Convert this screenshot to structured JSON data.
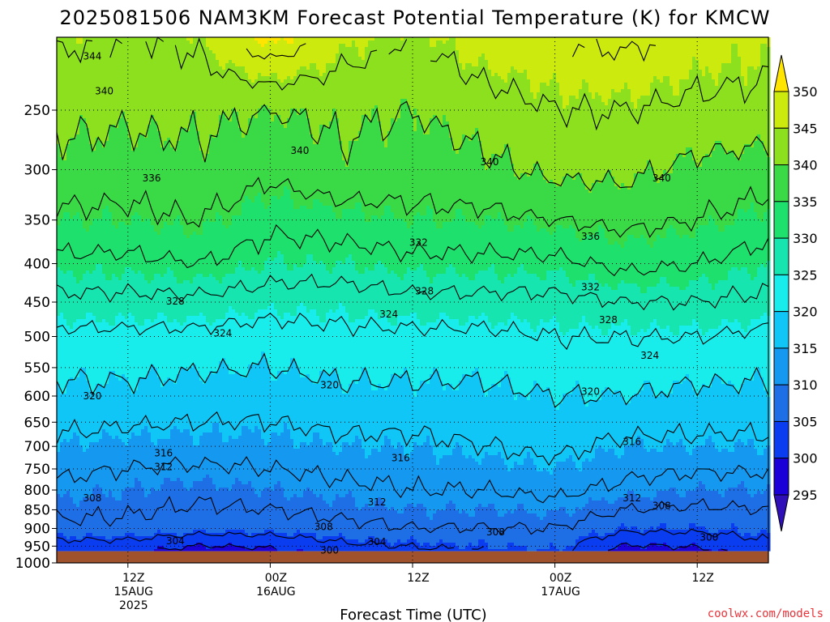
{
  "title": "2025081506 NAM3KM Forecast Potential Temperature (K) for KMCW",
  "xlabel": "Forecast Time (UTC)",
  "credit": "coolwx.com/models",
  "colors": {
    "ground": "#a0522d",
    "contour": "#000000",
    "fill_levels": [
      295,
      300,
      305,
      310,
      315,
      320,
      325,
      330,
      335,
      340,
      345,
      350
    ],
    "fill_colors": [
      "#1b00d8",
      "#0a3cf0",
      "#1e6fe6",
      "#1498f0",
      "#10c6f7",
      "#18edeb",
      "#17e5b0",
      "#1ee06c",
      "#3ad946",
      "#8de01d",
      "#cdea0e",
      "#fff80f"
    ],
    "below_color": "#2e0fb8",
    "above_color": "#ffe500"
  },
  "chart_data": {
    "type": "heatmap",
    "title": "2025081506 NAM3KM Forecast Potential Temperature (K) for KMCW",
    "xlabel": "Forecast Time (UTC)",
    "ylabel": "",
    "y_scale": "log",
    "y_reversed": true,
    "ylim": [
      1000,
      200
    ],
    "xlim_hours": [
      0,
      60
    ],
    "x_ticks": [
      {
        "hour": 6,
        "lines": [
          "12Z",
          "15AUG",
          "2025"
        ]
      },
      {
        "hour": 18,
        "lines": [
          "00Z",
          "16AUG"
        ]
      },
      {
        "hour": 30,
        "lines": [
          "12Z"
        ]
      },
      {
        "hour": 42,
        "lines": [
          "00Z",
          "17AUG"
        ]
      },
      {
        "hour": 54,
        "lines": [
          "12Z"
        ]
      }
    ],
    "y_ticks": [
      250,
      300,
      350,
      400,
      450,
      500,
      550,
      600,
      650,
      700,
      750,
      800,
      850,
      900,
      950,
      1000
    ],
    "grid": true,
    "colorbar": {
      "levels": [
        295,
        300,
        305,
        310,
        315,
        320,
        325,
        330,
        335,
        340,
        345,
        350
      ],
      "extend": "both",
      "placement": "right"
    },
    "ground_pressure": 965,
    "contour_interval": 4,
    "profile_hours": [
      0,
      6,
      12,
      18,
      24,
      30,
      36,
      42,
      48,
      54,
      60
    ],
    "profiles": [
      {
        "hour": 0,
        "pressure": [
          965,
          900,
          800,
          700,
          600,
          500,
          450,
          400,
          350,
          300,
          250,
          210
        ],
        "theta": [
          301,
          307,
          311,
          315,
          319,
          323,
          327,
          331,
          335,
          339,
          341,
          344
        ]
      },
      {
        "hour": 6,
        "pressure": [
          965,
          900,
          800,
          700,
          600,
          500,
          450,
          400,
          350,
          300,
          250,
          210
        ],
        "theta": [
          301,
          307,
          310,
          314,
          319,
          323,
          327,
          331,
          335,
          338,
          341,
          343
        ]
      },
      {
        "hour": 12,
        "pressure": [
          965,
          900,
          800,
          700,
          600,
          500,
          450,
          400,
          350,
          300,
          250,
          210
        ],
        "theta": [
          298,
          306,
          309,
          314,
          318,
          323,
          327,
          332,
          336,
          339,
          341,
          344
        ]
      },
      {
        "hour": 18,
        "pressure": [
          965,
          900,
          800,
          700,
          600,
          500,
          450,
          400,
          350,
          300,
          250,
          210
        ],
        "theta": [
          299,
          306,
          310,
          314,
          318,
          322,
          326,
          330,
          333,
          337,
          340,
          349
        ]
      },
      {
        "hour": 24,
        "pressure": [
          965,
          900,
          800,
          700,
          600,
          500,
          450,
          400,
          350,
          300,
          250,
          210
        ],
        "theta": [
          302,
          307,
          311,
          315,
          319,
          323,
          326,
          330,
          334,
          339,
          341,
          345
        ]
      },
      {
        "hour": 30,
        "pressure": [
          965,
          900,
          800,
          700,
          600,
          500,
          450,
          400,
          350,
          300,
          250,
          210
        ],
        "theta": [
          303,
          308,
          312,
          315,
          319,
          323,
          327,
          331,
          335,
          338,
          340,
          343
        ]
      },
      {
        "hour": 36,
        "pressure": [
          965,
          900,
          800,
          700,
          600,
          500,
          450,
          400,
          350,
          300,
          250,
          210
        ],
        "theta": [
          304,
          308,
          312,
          316,
          319,
          323,
          327,
          331,
          335,
          339,
          342,
          346
        ]
      },
      {
        "hour": 42,
        "pressure": [
          965,
          900,
          800,
          700,
          600,
          500,
          450,
          400,
          350,
          300,
          250,
          210
        ],
        "theta": [
          305,
          308,
          313,
          317,
          320,
          324,
          327,
          331,
          336,
          341,
          344,
          347
        ]
      },
      {
        "hour": 48,
        "pressure": [
          965,
          900,
          800,
          700,
          600,
          500,
          450,
          400,
          350,
          300,
          250,
          210
        ],
        "theta": [
          298,
          305,
          311,
          315,
          320,
          324,
          328,
          333,
          337,
          341,
          344,
          348
        ]
      },
      {
        "hour": 54,
        "pressure": [
          965,
          900,
          800,
          700,
          600,
          500,
          450,
          400,
          350,
          300,
          250,
          210
        ],
        "theta": [
          299,
          305,
          310,
          315,
          319,
          324,
          328,
          332,
          336,
          339,
          343,
          346
        ]
      },
      {
        "hour": 60,
        "pressure": [
          965,
          900,
          800,
          700,
          600,
          500,
          450,
          400,
          350,
          300,
          250,
          210
        ],
        "theta": [
          302,
          306,
          310,
          315,
          319,
          323,
          327,
          330,
          334,
          338,
          343,
          345
        ]
      }
    ],
    "contour_labels": [
      {
        "value": "344",
        "hour": 3.0,
        "p": 212
      },
      {
        "value": "340",
        "hour": 4.0,
        "p": 236
      },
      {
        "value": "340",
        "hour": 20.5,
        "p": 283
      },
      {
        "value": "340",
        "hour": 36.5,
        "p": 293
      },
      {
        "value": "340",
        "hour": 51.0,
        "p": 308
      },
      {
        "value": "336",
        "hour": 8.0,
        "p": 308
      },
      {
        "value": "336",
        "hour": 45.0,
        "p": 368
      },
      {
        "value": "332",
        "hour": 30.5,
        "p": 375
      },
      {
        "value": "332",
        "hour": 45.0,
        "p": 430
      },
      {
        "value": "328",
        "hour": 10.0,
        "p": 449
      },
      {
        "value": "328",
        "hour": 31.0,
        "p": 435
      },
      {
        "value": "328",
        "hour": 46.5,
        "p": 475
      },
      {
        "value": "324",
        "hour": 14.0,
        "p": 495
      },
      {
        "value": "324",
        "hour": 28.0,
        "p": 467
      },
      {
        "value": "324",
        "hour": 50.0,
        "p": 530
      },
      {
        "value": "320",
        "hour": 3.0,
        "p": 600
      },
      {
        "value": "320",
        "hour": 23.0,
        "p": 580
      },
      {
        "value": "320",
        "hour": 45.0,
        "p": 592
      },
      {
        "value": "316",
        "hour": 9.0,
        "p": 715
      },
      {
        "value": "316",
        "hour": 29.0,
        "p": 725
      },
      {
        "value": "316",
        "hour": 48.5,
        "p": 690
      },
      {
        "value": "312",
        "hour": 9.0,
        "p": 745
      },
      {
        "value": "312",
        "hour": 27.0,
        "p": 830
      },
      {
        "value": "312",
        "hour": 48.5,
        "p": 820
      },
      {
        "value": "308",
        "hour": 3.0,
        "p": 820
      },
      {
        "value": "308",
        "hour": 22.5,
        "p": 895
      },
      {
        "value": "308",
        "hour": 37.0,
        "p": 910
      },
      {
        "value": "308",
        "hour": 51.0,
        "p": 840
      },
      {
        "value": "304",
        "hour": 10.0,
        "p": 935
      },
      {
        "value": "304",
        "hour": 27.0,
        "p": 937
      },
      {
        "value": "300",
        "hour": 23.0,
        "p": 962
      },
      {
        "value": "300",
        "hour": 55.0,
        "p": 925
      }
    ]
  }
}
